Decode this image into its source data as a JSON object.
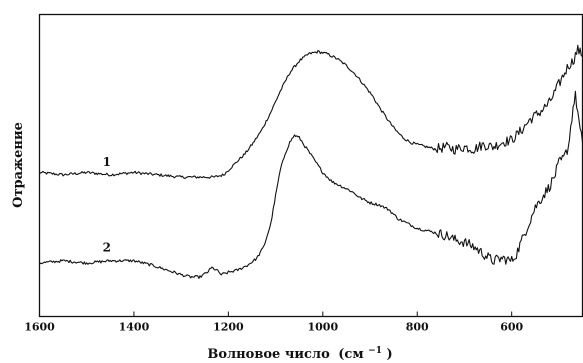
{
  "chart_data": {
    "type": "line",
    "title": "",
    "xlabel": "Волновое число",
    "xlabel_unit": "(см",
    "xlabel_unit_exp": "−1",
    "xlabel_unit_close": ")",
    "ylabel": "Отражение",
    "xlim": [
      1600,
      450
    ],
    "x_reversed": true,
    "x_ticks": [
      1600,
      1400,
      1200,
      1000,
      800,
      600
    ],
    "y_ticks": [],
    "grid": false,
    "legend": "none",
    "series": [
      {
        "label": "1",
        "x": [
          1600,
          1550,
          1500,
          1450,
          1400,
          1350,
          1300,
          1260,
          1230,
          1210,
          1195,
          1180,
          1165,
          1150,
          1130,
          1110,
          1090,
          1070,
          1050,
          1030,
          1010,
          990,
          970,
          950,
          930,
          910,
          895,
          880,
          860,
          845,
          830,
          815,
          800,
          780,
          760,
          740,
          720,
          700,
          680,
          660,
          640,
          620,
          600,
          580,
          560,
          540,
          520,
          510,
          500,
          490,
          480,
          470,
          460,
          450
        ],
        "y": [
          0.32,
          0.31,
          0.32,
          0.31,
          0.32,
          0.31,
          0.3,
          0.3,
          0.3,
          0.31,
          0.34,
          0.37,
          0.4,
          0.44,
          0.5,
          0.58,
          0.67,
          0.75,
          0.8,
          0.83,
          0.84,
          0.83,
          0.81,
          0.78,
          0.74,
          0.69,
          0.65,
          0.6,
          0.54,
          0.5,
          0.47,
          0.45,
          0.44,
          0.43,
          0.42,
          0.43,
          0.42,
          0.43,
          0.42,
          0.44,
          0.43,
          0.45,
          0.46,
          0.5,
          0.55,
          0.58,
          0.62,
          0.66,
          0.7,
          0.74,
          0.78,
          0.8,
          0.85,
          0.82
        ]
      },
      {
        "label": "2",
        "x": [
          1600,
          1550,
          1500,
          1450,
          1400,
          1360,
          1330,
          1300,
          1280,
          1260,
          1245,
          1235,
          1225,
          1215,
          1200,
          1180,
          1160,
          1140,
          1125,
          1110,
          1100,
          1090,
          1080,
          1070,
          1060,
          1050,
          1040,
          1030,
          1020,
          1000,
          980,
          960,
          940,
          920,
          900,
          880,
          860,
          840,
          820,
          800,
          780,
          760,
          740,
          720,
          700,
          680,
          660,
          640,
          620,
          600,
          590,
          580,
          570,
          560,
          550,
          540,
          530,
          520,
          510,
          500,
          490,
          480,
          470,
          465,
          460,
          455,
          450
        ],
        "y": [
          -0.07,
          -0.06,
          -0.07,
          -0.06,
          -0.06,
          -0.08,
          -0.1,
          -0.12,
          -0.13,
          -0.13,
          -0.11,
          -0.09,
          -0.1,
          -0.12,
          -0.11,
          -0.1,
          -0.08,
          -0.05,
          0.0,
          0.1,
          0.22,
          0.33,
          0.4,
          0.45,
          0.48,
          0.47,
          0.44,
          0.41,
          0.38,
          0.32,
          0.28,
          0.26,
          0.24,
          0.21,
          0.19,
          0.18,
          0.16,
          0.12,
          0.1,
          0.08,
          0.07,
          0.06,
          0.05,
          0.03,
          0.02,
          0.0,
          -0.03,
          -0.06,
          -0.05,
          -0.06,
          -0.03,
          0.02,
          0.07,
          0.12,
          0.17,
          0.2,
          0.23,
          0.26,
          0.3,
          0.36,
          0.38,
          0.43,
          0.6,
          0.65,
          0.58,
          0.5,
          0.45
        ]
      }
    ],
    "ylim": [
      -0.3,
      1.0
    ]
  }
}
